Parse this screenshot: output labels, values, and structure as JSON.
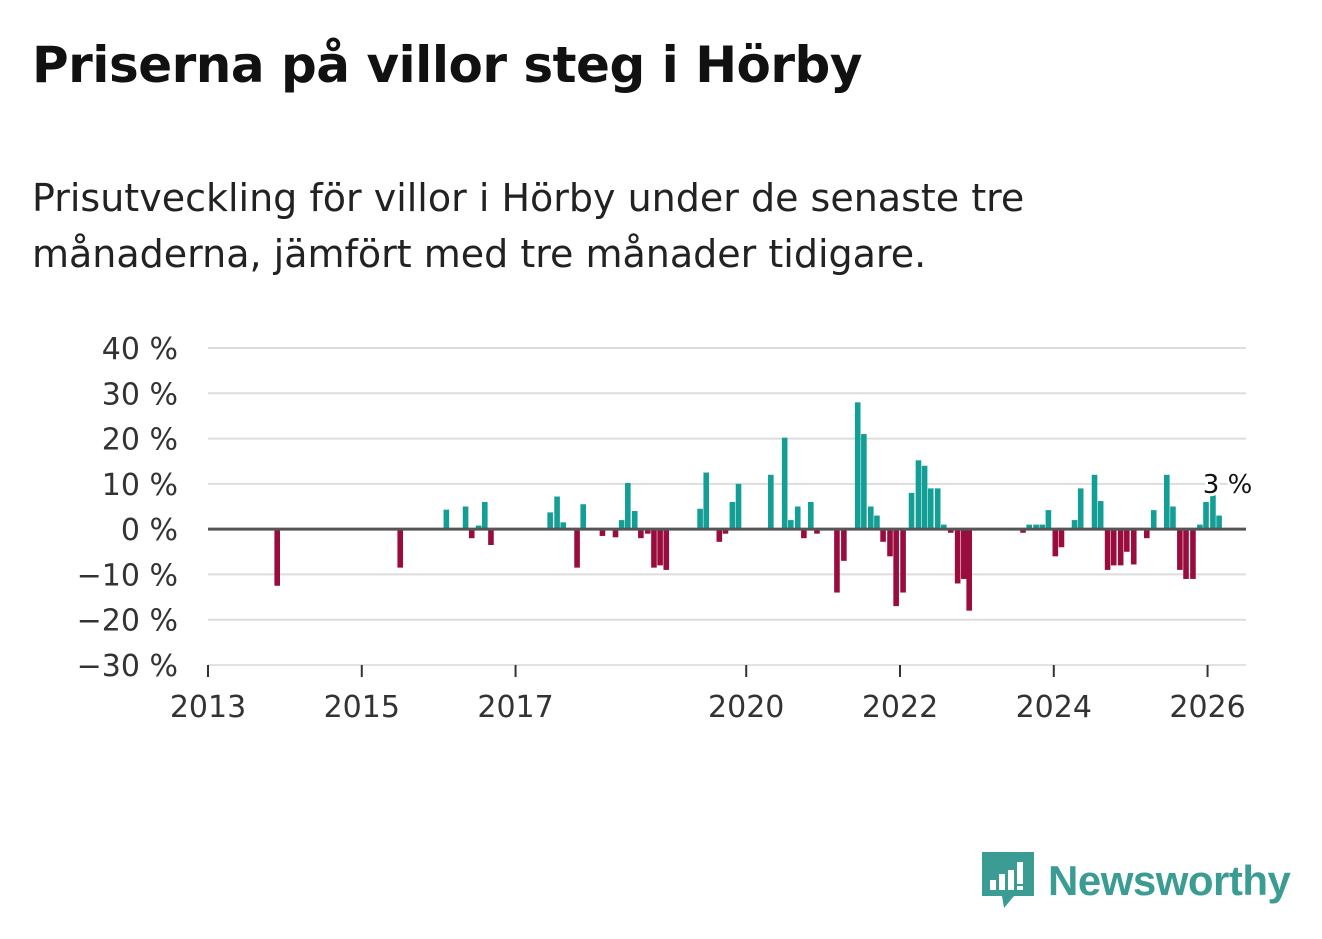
{
  "title": "Priserna på villor steg i Hörby",
  "subtitle": "Prisutveckling för villor i Hörby under de senaste tre månaderna, jämfört med tre månader tidigare.",
  "brand": {
    "name": "Newsworthy",
    "icon": "newsworthy-logo-icon"
  },
  "colors": {
    "positive": "#139e96",
    "negative": "#9b0c3e",
    "grid": "#dddddd",
    "zero": "#555555"
  },
  "chart_data": {
    "type": "bar",
    "title": "Priserna på villor steg i Hörby",
    "ylabel": "",
    "xlabel": "",
    "ylim": [
      -30,
      40
    ],
    "y_ticks": [
      40,
      30,
      20,
      10,
      0,
      -10,
      -20,
      -30
    ],
    "y_tick_labels": [
      "40 %",
      "30 %",
      "20 %",
      "10 %",
      "0 %",
      "−10 %",
      "−20 %",
      "−30 %"
    ],
    "x_range": [
      2013.0,
      2026.5
    ],
    "x_ticks": [
      2013,
      2015,
      2017,
      2020,
      2022,
      2024,
      2026
    ],
    "x_tick_labels": [
      "2013",
      "2015",
      "2017",
      "2020",
      "2022",
      "2024",
      "2026"
    ],
    "annotation": {
      "text": "3 %",
      "x": 2026.0,
      "y": 3
    },
    "series": [
      {
        "name": "Prisutveckling",
        "points": [
          {
            "x": 2013.9,
            "y": -12.5
          },
          {
            "x": 2015.5,
            "y": -8.5
          },
          {
            "x": 2016.1,
            "y": 4.3
          },
          {
            "x": 2016.35,
            "y": 5.0
          },
          {
            "x": 2016.43,
            "y": -2.0
          },
          {
            "x": 2016.52,
            "y": 0.8
          },
          {
            "x": 2016.6,
            "y": 6.0
          },
          {
            "x": 2016.68,
            "y": -3.5
          },
          {
            "x": 2017.45,
            "y": 3.7
          },
          {
            "x": 2017.54,
            "y": 7.2
          },
          {
            "x": 2017.62,
            "y": 1.5
          },
          {
            "x": 2017.8,
            "y": -8.5
          },
          {
            "x": 2017.88,
            "y": 5.5
          },
          {
            "x": 2018.13,
            "y": -1.5
          },
          {
            "x": 2018.3,
            "y": -1.8
          },
          {
            "x": 2018.38,
            "y": 2.0
          },
          {
            "x": 2018.46,
            "y": 10.2
          },
          {
            "x": 2018.55,
            "y": 4.0
          },
          {
            "x": 2018.63,
            "y": -2.0
          },
          {
            "x": 2018.72,
            "y": -1.0
          },
          {
            "x": 2018.8,
            "y": -8.5
          },
          {
            "x": 2018.88,
            "y": -8.0
          },
          {
            "x": 2018.96,
            "y": -9.0
          },
          {
            "x": 2019.4,
            "y": 4.5
          },
          {
            "x": 2019.48,
            "y": 12.5
          },
          {
            "x": 2019.65,
            "y": -2.8
          },
          {
            "x": 2019.73,
            "y": -1.0
          },
          {
            "x": 2019.82,
            "y": 6.0
          },
          {
            "x": 2019.9,
            "y": 10.0
          },
          {
            "x": 2020.32,
            "y": 12.0
          },
          {
            "x": 2020.5,
            "y": 20.2
          },
          {
            "x": 2020.58,
            "y": 2.0
          },
          {
            "x": 2020.67,
            "y": 5.0
          },
          {
            "x": 2020.75,
            "y": -2.0
          },
          {
            "x": 2020.84,
            "y": 6.0
          },
          {
            "x": 2020.92,
            "y": -1.0
          },
          {
            "x": 2021.18,
            "y": -14.0
          },
          {
            "x": 2021.27,
            "y": -7.0
          },
          {
            "x": 2021.45,
            "y": 28.0
          },
          {
            "x": 2021.53,
            "y": 21.0
          },
          {
            "x": 2021.62,
            "y": 5.0
          },
          {
            "x": 2021.7,
            "y": 3.0
          },
          {
            "x": 2021.78,
            "y": -2.8
          },
          {
            "x": 2021.87,
            "y": -6.0
          },
          {
            "x": 2021.95,
            "y": -17.0
          },
          {
            "x": 2022.04,
            "y": -14.0
          },
          {
            "x": 2022.15,
            "y": 8.0
          },
          {
            "x": 2022.24,
            "y": 15.2
          },
          {
            "x": 2022.32,
            "y": 14.0
          },
          {
            "x": 2022.4,
            "y": 9.0
          },
          {
            "x": 2022.49,
            "y": 9.0
          },
          {
            "x": 2022.57,
            "y": 1.0
          },
          {
            "x": 2022.66,
            "y": -0.8
          },
          {
            "x": 2022.75,
            "y": -12.0
          },
          {
            "x": 2022.83,
            "y": -11.0
          },
          {
            "x": 2022.9,
            "y": -18.0
          },
          {
            "x": 2023.6,
            "y": -0.8
          },
          {
            "x": 2023.68,
            "y": 1.0
          },
          {
            "x": 2023.77,
            "y": 1.0
          },
          {
            "x": 2023.85,
            "y": 1.0
          },
          {
            "x": 2023.93,
            "y": 4.2
          },
          {
            "x": 2024.02,
            "y": -6.0
          },
          {
            "x": 2024.1,
            "y": -4.0
          },
          {
            "x": 2024.27,
            "y": 2.0
          },
          {
            "x": 2024.35,
            "y": 9.0
          },
          {
            "x": 2024.53,
            "y": 12.0
          },
          {
            "x": 2024.61,
            "y": 6.2
          },
          {
            "x": 2024.7,
            "y": -9.0
          },
          {
            "x": 2024.78,
            "y": -8.0
          },
          {
            "x": 2024.87,
            "y": -8.0
          },
          {
            "x": 2024.95,
            "y": -5.0
          },
          {
            "x": 2025.04,
            "y": -7.8
          },
          {
            "x": 2025.21,
            "y": -2.0
          },
          {
            "x": 2025.3,
            "y": 4.2
          },
          {
            "x": 2025.47,
            "y": 12.0
          },
          {
            "x": 2025.55,
            "y": 5.0
          },
          {
            "x": 2025.64,
            "y": -9.0
          },
          {
            "x": 2025.72,
            "y": -11.0
          },
          {
            "x": 2025.81,
            "y": -11.0
          },
          {
            "x": 2025.9,
            "y": 1.0
          },
          {
            "x": 2025.98,
            "y": 6.0
          },
          {
            "x": 2026.07,
            "y": 8.5
          },
          {
            "x": 2026.15,
            "y": 3.0
          }
        ]
      }
    ]
  }
}
